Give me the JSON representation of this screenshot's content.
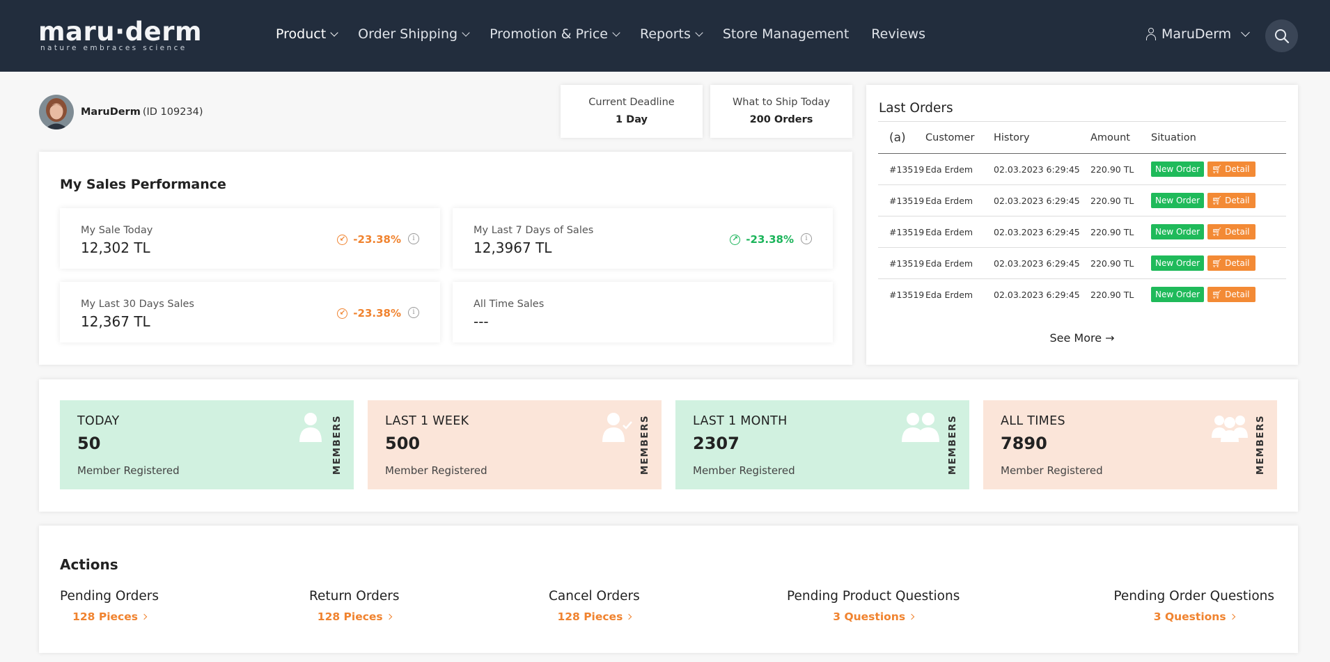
{
  "header": {
    "logo_text": "maru·derm",
    "logo_tagline": "nature embraces science",
    "nav": [
      {
        "label": "Product"
      },
      {
        "label": "Order Shipping"
      },
      {
        "label": "Promotion & Price"
      },
      {
        "label": "Reports"
      },
      {
        "label": "Store Management"
      },
      {
        "label": "Reviews"
      }
    ],
    "user_label": "MaruDerm"
  },
  "profile": {
    "name": "MaruDerm",
    "id_text": "(ID 109234)"
  },
  "deadline": {
    "label": "Current Deadline",
    "value": "1 Day"
  },
  "ship_today": {
    "label": "What to Ship Today",
    "value": "200 Orders"
  },
  "sales": {
    "title": "My Sales Performance",
    "stats": [
      {
        "label": "My Sale Today",
        "value": "12,302 TL",
        "change": "-23.38%",
        "trend": "down"
      },
      {
        "label": "My Last 7 Days of Sales",
        "value": "12,3967 TL",
        "change": "-23.38%",
        "trend": "up"
      },
      {
        "label": "My Last 30 Days Sales",
        "value": "12,367 TL",
        "change": "-23.38%",
        "trend": "down"
      },
      {
        "label": "All Time Sales",
        "value": "---"
      }
    ]
  },
  "last_orders": {
    "title": "Last Orders",
    "columns": [
      "(a)",
      "Customer",
      "History",
      "Amount",
      "Situation"
    ],
    "rows": [
      {
        "id": "#13519",
        "customer": "Eda Erdem",
        "date": "02.03.2023 6:29:45",
        "amount": "220.90 TL",
        "status": "New Order",
        "action": "Detail"
      },
      {
        "id": "#13519",
        "customer": "Eda Erdem",
        "date": "02.03.2023 6:29:45",
        "amount": "220.90 TL",
        "status": "New Order",
        "action": "Detail"
      },
      {
        "id": "#13519",
        "customer": "Eda Erdem",
        "date": "02.03.2023 6:29:45",
        "amount": "220.90 TL",
        "status": "New Order",
        "action": "Detail"
      },
      {
        "id": "#13519",
        "customer": "Eda Erdem",
        "date": "02.03.2023 6:29:45",
        "amount": "220.90 TL",
        "status": "New Order",
        "action": "Detail"
      },
      {
        "id": "#13519",
        "customer": "Eda Erdem",
        "date": "02.03.2023 6:29:45",
        "amount": "220.90 TL",
        "status": "New Order",
        "action": "Detail"
      }
    ],
    "see_more": "See More"
  },
  "members": [
    {
      "title": "TODAY",
      "count": "50",
      "sub": "Member Registered",
      "side": "MEMBERS",
      "icon": "single-user-icon",
      "color": "#d1f1e0"
    },
    {
      "title": "LAST 1 WEEK",
      "count": "500",
      "sub": "Member Registered",
      "side": "MEMBERS",
      "icon": "user-check-icon",
      "color": "#fbe5d9"
    },
    {
      "title": "LAST 1 MONTH",
      "count": "2307",
      "sub": "Member Registered",
      "side": "MEMBERS",
      "icon": "two-users-icon",
      "color": "#d1f1e0"
    },
    {
      "title": "ALL TIMES",
      "count": "7890",
      "sub": "Member Registered",
      "side": "MEMBERS",
      "icon": "user-group-icon",
      "color": "#fbe5d9"
    }
  ],
  "actions": {
    "title": "Actions",
    "items": [
      {
        "label": "Pending Orders",
        "count": "128 Pieces"
      },
      {
        "label": "Return Orders",
        "count": "128 Pieces"
      },
      {
        "label": "Cancel Orders",
        "count": "128 Pieces"
      },
      {
        "label": "Pending Product Questions",
        "count": "3 Questions"
      },
      {
        "label": "Pending Order Questions",
        "count": "3 Questions"
      }
    ]
  },
  "colors": {
    "header_bg": "#222d3d",
    "accent_orange": "#f0832f",
    "accent_green": "#1bb45a",
    "card_green": "#d1f1e0",
    "card_peach": "#fbe5d9"
  }
}
